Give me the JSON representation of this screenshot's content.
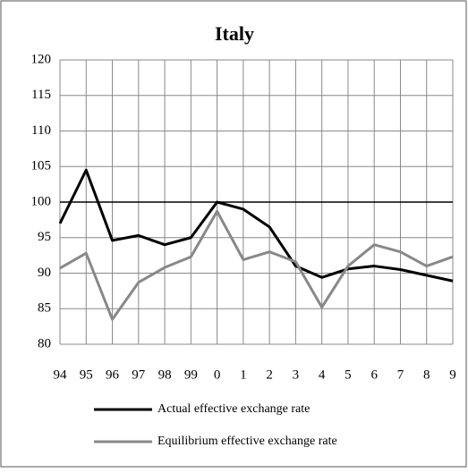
{
  "chart_data": {
    "type": "line",
    "title": "Italy",
    "categories": [
      "94",
      "95",
      "96",
      "97",
      "98",
      "99",
      "0",
      "1",
      "2",
      "3",
      "4",
      "5",
      "6",
      "7",
      "8",
      "9"
    ],
    "series": [
      {
        "name": "Actual effective exchange rate",
        "color": "#000000",
        "values": [
          97,
          104.5,
          94.6,
          95.3,
          94,
          95,
          100,
          99,
          96.5,
          91,
          89.4,
          90.6,
          91,
          90.5,
          89.7,
          88.9
        ]
      },
      {
        "name": "Equilibrium effective exchange rate",
        "color": "#888888",
        "values": [
          90.7,
          92.8,
          83.5,
          88.7,
          90.8,
          92.3,
          98.7,
          91.9,
          93,
          91.6,
          85.2,
          91,
          94,
          93,
          91,
          92.3
        ]
      }
    ],
    "ylim": [
      80,
      120
    ],
    "yticks": [
      80,
      85,
      90,
      95,
      100,
      105,
      110,
      115,
      120
    ],
    "reference_line": 100,
    "grid": true
  }
}
